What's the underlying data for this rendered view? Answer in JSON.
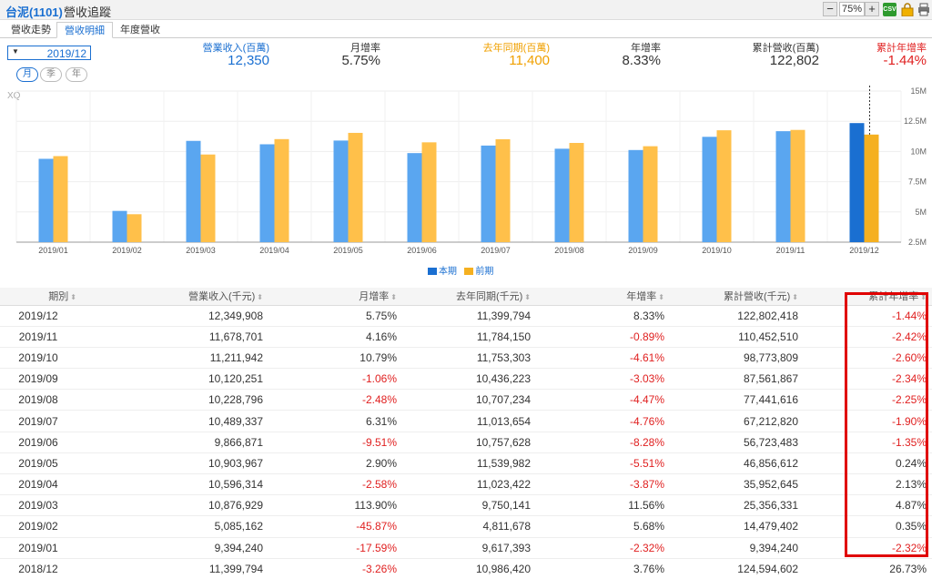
{
  "header": {
    "stock": "台泥(1101)",
    "title": "營收追蹤",
    "zoom": "75%",
    "csv_label": "CSV"
  },
  "tabs": [
    "營收走勢",
    "營收明細",
    "年度營收"
  ],
  "active_tab": 1,
  "period": {
    "value": "2019/12"
  },
  "freq_buttons": [
    "月",
    "季",
    "年"
  ],
  "stats": [
    {
      "label": "營業收入(百萬)",
      "value": "12,350",
      "color": "#1a6fd1"
    },
    {
      "label": "月增率",
      "value": "5.75%",
      "color": "#333333"
    },
    {
      "label": "去年同期(百萬)",
      "value": "11,400",
      "color": "#f0a000"
    },
    {
      "label": "年增率",
      "value": "8.33%",
      "color": "#333333"
    },
    {
      "label": "累計營收(百萬)",
      "value": "122,802",
      "color": "#333333"
    },
    {
      "label": "累計年增率",
      "value": "-1.44%",
      "color": "#e02020"
    }
  ],
  "chart_watermark": "XQ",
  "chart_data": {
    "type": "bar",
    "categories": [
      "2019/01",
      "2019/02",
      "2019/03",
      "2019/04",
      "2019/05",
      "2019/06",
      "2019/07",
      "2019/08",
      "2019/09",
      "2019/10",
      "2019/11",
      "2019/12"
    ],
    "series": [
      {
        "name": "本期",
        "color": "#5aa6f0",
        "values": [
          9394240,
          5085162,
          10876929,
          10596314,
          10903967,
          9866871,
          10489337,
          10228796,
          10120251,
          11211942,
          11678701,
          12349908
        ]
      },
      {
        "name": "前期",
        "color": "#ffc04a",
        "values": [
          9617393,
          4811678,
          9750141,
          11023422,
          11539982,
          10757628,
          11013654,
          10707234,
          10436223,
          11753303,
          11784150,
          11399794
        ]
      }
    ],
    "highlight_index": 11,
    "highlight_colors": [
      "#1a6fd1",
      "#f5b020"
    ],
    "y_ticks": [
      "2.5M",
      "5M",
      "7.5M",
      "10M",
      "12.5M",
      "15M"
    ],
    "y_tick_values": [
      2500000,
      5000000,
      7500000,
      10000000,
      12500000,
      15000000
    ],
    "ylim": [
      2500000,
      15000000
    ]
  },
  "table": {
    "headers": [
      "期別",
      "營業收入(千元)",
      "月增率",
      "去年同期(千元)",
      "年增率",
      "累計營收(千元)",
      "累計年增率"
    ],
    "rows": [
      [
        "2019/12",
        "12,349,908",
        "5.75%",
        "11,399,794",
        "8.33%",
        "122,802,418",
        "-1.44%"
      ],
      [
        "2019/11",
        "11,678,701",
        "4.16%",
        "11,784,150",
        "-0.89%",
        "110,452,510",
        "-2.42%"
      ],
      [
        "2019/10",
        "11,211,942",
        "10.79%",
        "11,753,303",
        "-4.61%",
        "98,773,809",
        "-2.60%"
      ],
      [
        "2019/09",
        "10,120,251",
        "-1.06%",
        "10,436,223",
        "-3.03%",
        "87,561,867",
        "-2.34%"
      ],
      [
        "2019/08",
        "10,228,796",
        "-2.48%",
        "10,707,234",
        "-4.47%",
        "77,441,616",
        "-2.25%"
      ],
      [
        "2019/07",
        "10,489,337",
        "6.31%",
        "11,013,654",
        "-4.76%",
        "67,212,820",
        "-1.90%"
      ],
      [
        "2019/06",
        "9,866,871",
        "-9.51%",
        "10,757,628",
        "-8.28%",
        "56,723,483",
        "-1.35%"
      ],
      [
        "2019/05",
        "10,903,967",
        "2.90%",
        "11,539,982",
        "-5.51%",
        "46,856,612",
        "0.24%"
      ],
      [
        "2019/04",
        "10,596,314",
        "-2.58%",
        "11,023,422",
        "-3.87%",
        "35,952,645",
        "2.13%"
      ],
      [
        "2019/03",
        "10,876,929",
        "113.90%",
        "9,750,141",
        "11.56%",
        "25,356,331",
        "4.87%"
      ],
      [
        "2019/02",
        "5,085,162",
        "-45.87%",
        "4,811,678",
        "5.68%",
        "14,479,402",
        "0.35%"
      ],
      [
        "2019/01",
        "9,394,240",
        "-17.59%",
        "9,617,393",
        "-2.32%",
        "9,394,240",
        "-2.32%"
      ],
      [
        "2018/12",
        "11,399,794",
        "-3.26%",
        "10,986,420",
        "3.76%",
        "124,594,602",
        "26.73%"
      ]
    ]
  }
}
